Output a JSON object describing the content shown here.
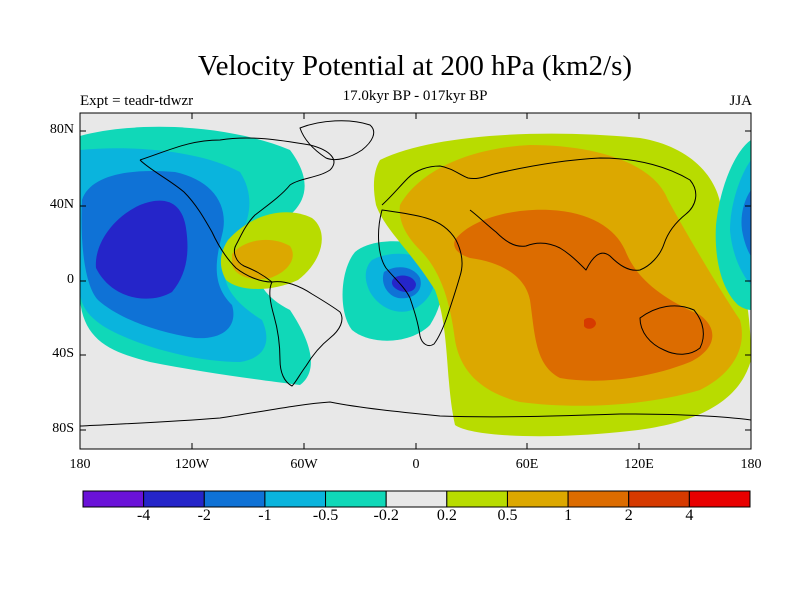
{
  "title": "Velocity Potential at 200 hPa (km2/s)",
  "subtitle": "17.0kyr BP - 017kyr BP",
  "experiment": "Expt = teadr-tdwzr",
  "season": "JJA",
  "map": {
    "projection": "cylindrical equidistant",
    "background_color": "#e8e8e8",
    "lat_labels": [
      "80N",
      "40N",
      "0",
      "40S",
      "80S"
    ],
    "lon_labels": [
      "180",
      "120W",
      "60W",
      "0",
      "60E",
      "120E",
      "180"
    ]
  },
  "colorbar": {
    "colors": [
      "#6a12d8",
      "#2525c9",
      "#0f72d6",
      "#0ab4dd",
      "#10d8b8",
      "#e8e8e8",
      "#b8dc00",
      "#dca800",
      "#dc6c00",
      "#d63a00",
      "#e80000"
    ],
    "labels": [
      "-4",
      "-2",
      "-1",
      "-0.5",
      "-0.2",
      "0.2",
      "0.5",
      "1",
      "2",
      "4"
    ]
  }
}
